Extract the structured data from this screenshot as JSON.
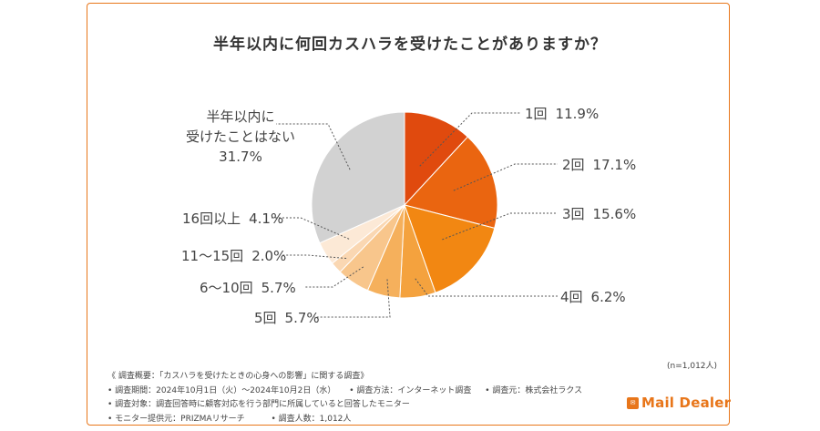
{
  "title": "半年以内に何回カスハラを受けたことがありますか？",
  "chart_data": {
    "type": "pie",
    "title": "半年以内に何回カスハラを受けたことがありますか？",
    "unit": "%",
    "slices": [
      {
        "label": "1回",
        "value": 11.9,
        "value_text": "11.9%",
        "color": "#e04a0e"
      },
      {
        "label": "2回",
        "value": 17.1,
        "value_text": "17.1%",
        "color": "#ea6510"
      },
      {
        "label": "3回",
        "value": 15.6,
        "value_text": "15.6%",
        "color": "#f28712"
      },
      {
        "label": "4回",
        "value": 6.2,
        "value_text": "6.2%",
        "color": "#f4a23e"
      },
      {
        "label": "5回",
        "value": 5.7,
        "value_text": "5.7%",
        "color": "#f5b05c"
      },
      {
        "label": "6〜10回",
        "value": 5.7,
        "value_text": "5.7%",
        "color": "#f8c68c"
      },
      {
        "label": "11〜15回",
        "value": 2.0,
        "value_text": "2.0%",
        "color": "#fad7b2"
      },
      {
        "label": "16回以上",
        "value": 4.1,
        "value_text": "4.1%",
        "color": "#fce9d6"
      },
      {
        "label": "半年以内に受けたことはない",
        "label_lines": [
          "半年以内に",
          "受けたことはない"
        ],
        "value": 31.7,
        "value_text": "31.7%",
        "color": "#d2d2d2"
      }
    ]
  },
  "sample_note": "(n=1,012人)",
  "notes": {
    "line1": "《 調査概要：「カスハラを受けたときの心身への影響」に関する調査》",
    "period": "• 調査期間：2024年10月1日（火）〜2024年10月2日（水）",
    "method": "• 調査方法：インターネット調査",
    "source": "• 調査元：株式会社ラクス",
    "target": "• 調査対象：調査回答時に顧客対応を行う部門に所属していると回答したモニター",
    "provider": "• モニター提供元：PRIZMAリサーチ",
    "count": "• 調査人数：1,012人"
  },
  "logo": {
    "mark": "ｶｽﾀﾏ",
    "text": "Mail Dealer",
    "color": "#e8761a"
  },
  "colors": {
    "border": "#e8761a",
    "leader": "#555555"
  }
}
